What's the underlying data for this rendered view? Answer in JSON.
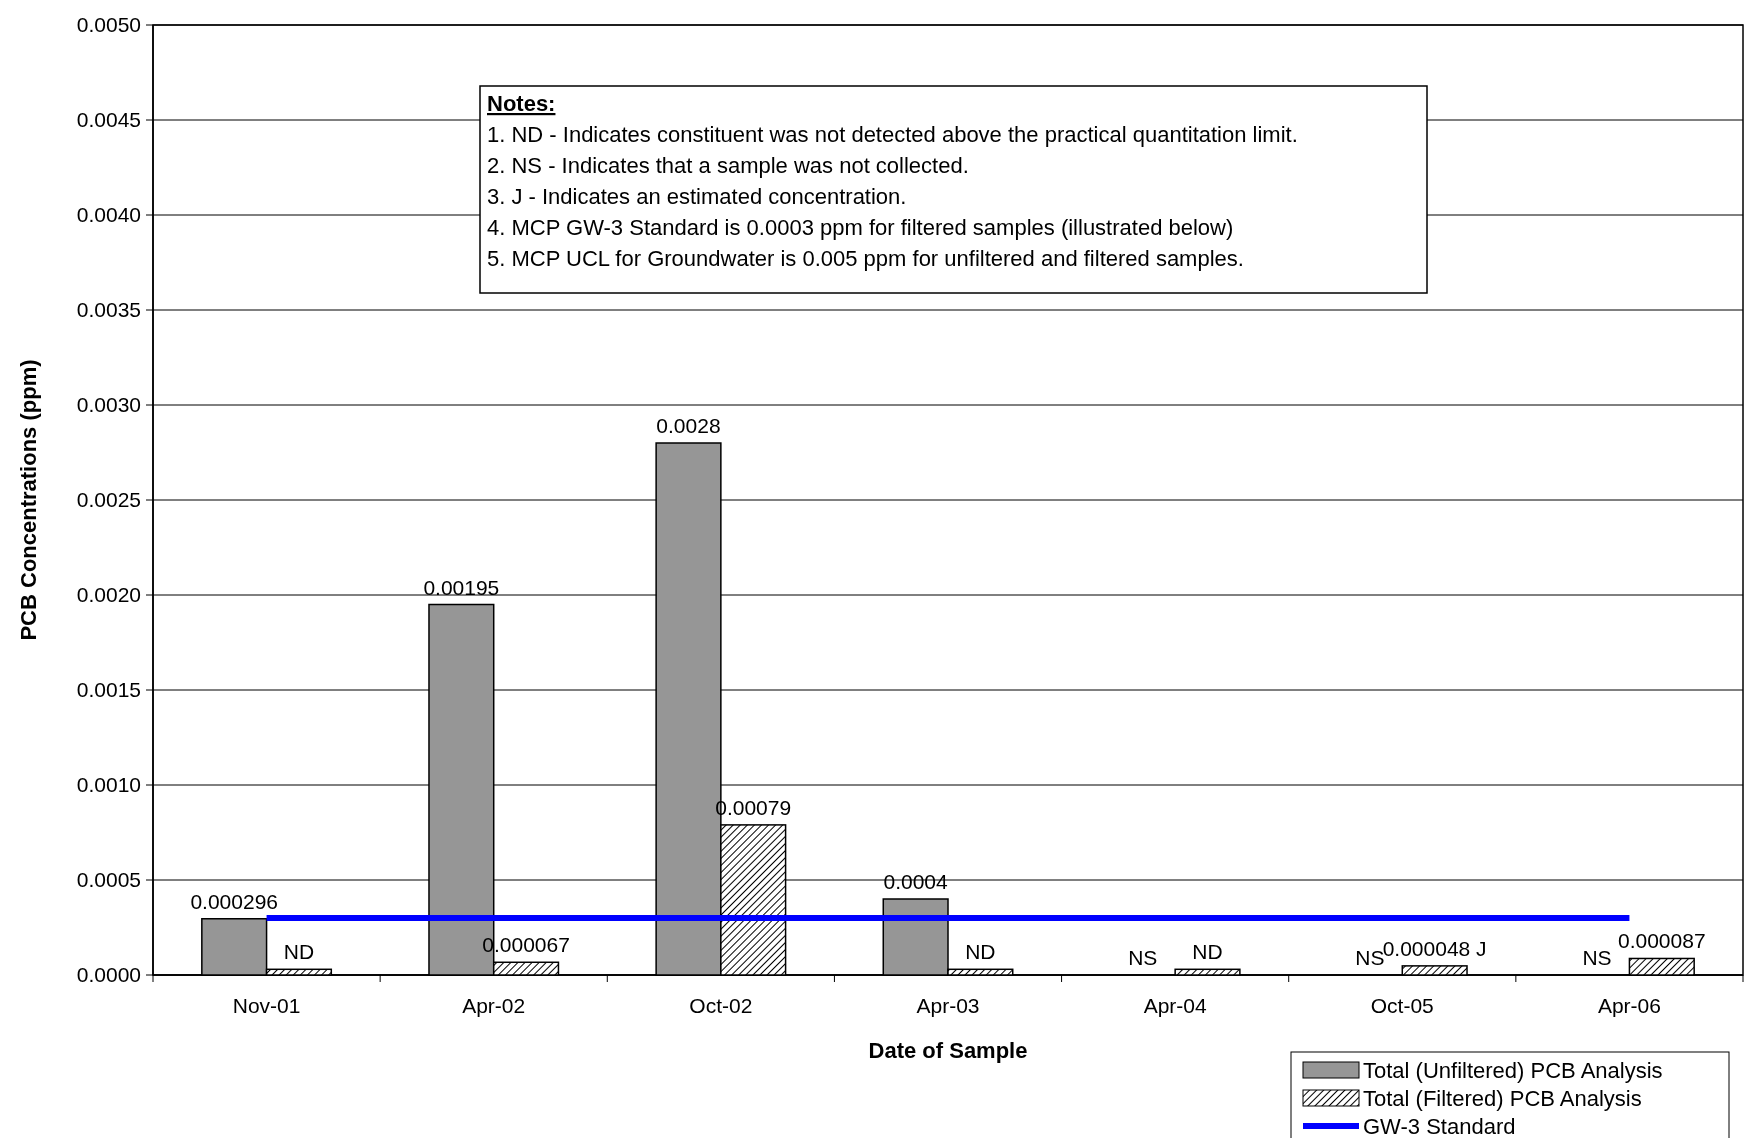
{
  "chart_data": {
    "type": "bar",
    "xlabel": "Date of Sample",
    "ylabel": "PCB Concentrations (ppm)",
    "categories": [
      "Nov-01",
      "Apr-02",
      "Oct-02",
      "Apr-03",
      "Apr-04",
      "Oct-05",
      "Apr-06"
    ],
    "series": [
      {
        "name": "Total (Unfiltered) PCB Analysis",
        "color": "#969696",
        "values": [
          0.000296,
          0.00195,
          0.0028,
          0.0004,
          null,
          null,
          null
        ],
        "value_labels": [
          "0.000296",
          "0.00195",
          "0.0028",
          "0.0004",
          "NS",
          "NS",
          "NS"
        ]
      },
      {
        "name": "Total (Filtered) PCB Analysis",
        "color": "#000000",
        "values": [
          3e-05,
          6.7e-05,
          0.00079,
          3e-05,
          3e-05,
          4.8e-05,
          8.7e-05
        ],
        "value_labels": [
          "ND",
          "0.000067",
          "0.00079",
          "ND",
          "ND",
          "0.000048 J",
          "0.000087"
        ]
      },
      {
        "name": "GW-3 Standard",
        "type": "line",
        "color": "#0000ff",
        "values": [
          0.0003,
          0.0003,
          0.0003,
          0.0003,
          0.0003,
          0.0003,
          0.0003
        ]
      }
    ],
    "ylim": [
      0,
      0.005
    ],
    "yticks": [
      {
        "value": 0,
        "label": "0.0000"
      },
      {
        "value": 0.0005,
        "label": "0.0005"
      },
      {
        "value": 0.001,
        "label": "0.0010"
      },
      {
        "value": 0.0015,
        "label": "0.0015"
      },
      {
        "value": 0.002,
        "label": "0.0020"
      },
      {
        "value": 0.0025,
        "label": "0.0025"
      },
      {
        "value": 0.003,
        "label": "0.0030"
      },
      {
        "value": 0.0035,
        "label": "0.0035"
      },
      {
        "value": 0.004,
        "label": "0.0040"
      },
      {
        "value": 0.0045,
        "label": "0.0045"
      },
      {
        "value": 0.005,
        "label": "0.0050"
      }
    ],
    "grid": "y",
    "legend": "bottom right",
    "marker": "none",
    "annotations": [
      "Notes:",
      "1.  ND - Indicates constituent was not detected above the practical quantitation limit.",
      "2.  NS - Indicates that a sample was not collected.",
      "3.  J - Indicates an estimated concentration.",
      "4.  MCP GW-3 Standard is 0.0003 ppm for filtered samples (illustrated below)",
      "5.  MCP UCL for Groundwater is 0.005 ppm for unfiltered and filtered samples."
    ]
  }
}
